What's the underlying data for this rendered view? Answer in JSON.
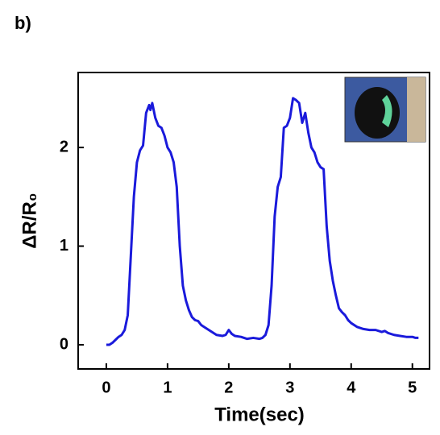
{
  "chart_data": {
    "type": "line",
    "panel_label": "b)",
    "x_label": "Time(sec)",
    "y_label": "ΔR/R₀",
    "x": [
      0.0,
      0.05,
      0.1,
      0.15,
      0.2,
      0.25,
      0.3,
      0.35,
      0.4,
      0.45,
      0.5,
      0.55,
      0.6,
      0.65,
      0.7,
      0.72,
      0.75,
      0.8,
      0.85,
      0.9,
      0.95,
      1.0,
      1.05,
      1.1,
      1.15,
      1.2,
      1.25,
      1.3,
      1.35,
      1.4,
      1.45,
      1.5,
      1.55,
      1.6,
      1.7,
      1.8,
      1.9,
      1.95,
      2.0,
      2.05,
      2.1,
      2.2,
      2.3,
      2.4,
      2.5,
      2.55,
      2.6,
      2.65,
      2.7,
      2.75,
      2.8,
      2.85,
      2.9,
      2.95,
      3.0,
      3.05,
      3.1,
      3.15,
      3.2,
      3.25,
      3.3,
      3.35,
      3.4,
      3.45,
      3.5,
      3.55,
      3.6,
      3.65,
      3.7,
      3.75,
      3.8,
      3.85,
      3.9,
      3.95,
      4.0,
      4.1,
      4.2,
      4.3,
      4.4,
      4.5,
      4.55,
      4.6,
      4.7,
      4.8,
      4.9,
      5.0,
      5.05,
      5.1
    ],
    "series": [
      {
        "color": "#1a1adb",
        "values": [
          0.0,
          0.0,
          0.02,
          0.05,
          0.08,
          0.1,
          0.15,
          0.3,
          0.9,
          1.5,
          1.85,
          1.97,
          2.02,
          2.35,
          2.43,
          2.38,
          2.45,
          2.3,
          2.22,
          2.2,
          2.12,
          2.0,
          1.95,
          1.85,
          1.6,
          1.0,
          0.6,
          0.45,
          0.35,
          0.28,
          0.25,
          0.24,
          0.2,
          0.18,
          0.14,
          0.1,
          0.09,
          0.1,
          0.15,
          0.11,
          0.09,
          0.08,
          0.06,
          0.07,
          0.06,
          0.07,
          0.1,
          0.2,
          0.6,
          1.3,
          1.6,
          1.7,
          2.2,
          2.22,
          2.3,
          2.5,
          2.48,
          2.45,
          2.25,
          2.35,
          2.15,
          2.0,
          1.95,
          1.85,
          1.8,
          1.78,
          1.2,
          0.85,
          0.65,
          0.5,
          0.37,
          0.33,
          0.3,
          0.25,
          0.22,
          0.18,
          0.16,
          0.15,
          0.15,
          0.13,
          0.14,
          0.12,
          0.1,
          0.09,
          0.08,
          0.08,
          0.07,
          0.07
        ]
      }
    ],
    "xlim": [
      -0.46,
      5.28
    ],
    "ylim": [
      -0.245,
      2.76
    ],
    "xticks": [
      0,
      1,
      2,
      3,
      4,
      5
    ],
    "yticks": [
      0,
      1,
      2
    ]
  }
}
